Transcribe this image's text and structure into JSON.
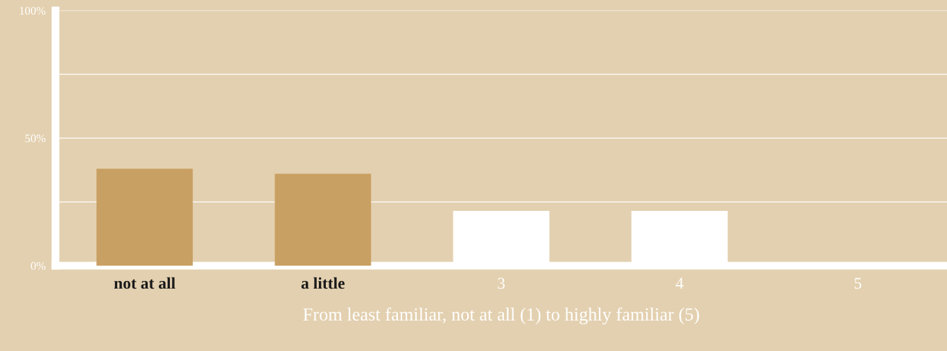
{
  "chart_data": {
    "type": "bar",
    "xlabel": "From least familiar, not at all (1) to highly familiar (5)",
    "categories": [
      "not at all",
      "a little",
      "3",
      "4",
      "5"
    ],
    "values": [
      38,
      36,
      21.5,
      21.5,
      0
    ],
    "colors": [
      "#c9a063",
      "#c9a063",
      "#ffffff",
      "#ffffff",
      "#ffffff"
    ],
    "ylim": [
      0,
      100
    ],
    "yticks": [
      {
        "value": 0,
        "label": "0%"
      },
      {
        "value": 25,
        "label": null
      },
      {
        "value": 50,
        "label": "50%"
      },
      {
        "value": 75,
        "label": null
      },
      {
        "value": 100,
        "label": "100%"
      }
    ],
    "grid": "y",
    "legend": false
  }
}
